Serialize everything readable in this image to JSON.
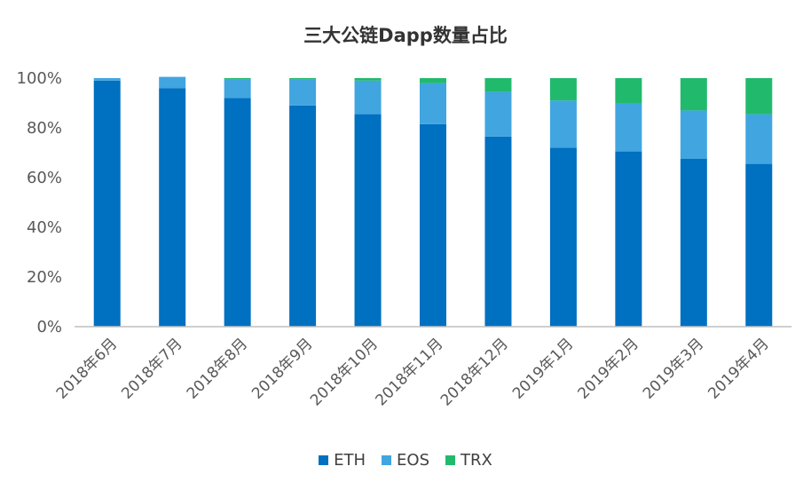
{
  "chart_data": {
    "type": "bar",
    "stacked": true,
    "title": "三大公链Dapp数量占比",
    "categories": [
      "2018年6月",
      "2018年7月",
      "2018年8月",
      "2018年9月",
      "2018年10月",
      "2018年11月",
      "2018年12月",
      "2019年1月",
      "2019年2月",
      "2019年3月",
      "2019年4月"
    ],
    "series": [
      {
        "name": "ETH",
        "color": "#0070C0",
        "values": [
          99,
          96,
          92,
          89,
          85.5,
          81.5,
          76.5,
          72,
          70.5,
          67.5,
          65.5
        ]
      },
      {
        "name": "EOS",
        "color": "#41A5E0",
        "values": [
          1,
          4.5,
          7.5,
          10.5,
          13.5,
          16.5,
          18,
          19,
          19.5,
          19.5,
          20
        ]
      },
      {
        "name": "TRX",
        "color": "#21BA6D",
        "values": [
          0,
          0,
          0.5,
          0.5,
          1,
          2,
          5.5,
          9,
          10,
          13,
          14.5
        ]
      }
    ],
    "yticks": [
      "0%",
      "20%",
      "40%",
      "60%",
      "80%",
      "100%"
    ],
    "ylim": [
      0,
      100
    ],
    "xlabel": "",
    "ylabel": "",
    "grid": false,
    "legend": "bottom"
  }
}
